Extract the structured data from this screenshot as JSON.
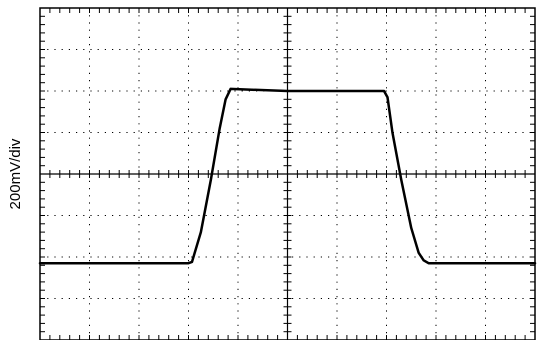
{
  "chart_data": {
    "type": "line",
    "ylabel": "200mV/div",
    "xlabel": "",
    "title": "",
    "grid": true,
    "grid_style": "dotted",
    "x_divisions": 10,
    "y_divisions": 8,
    "minor_ticks_per_division": 5,
    "xlim": [
      0,
      10
    ],
    "ylim": [
      0,
      8
    ],
    "series": [
      {
        "x": [
          0,
          3.0,
          3.07,
          3.25,
          3.45,
          3.63,
          3.75,
          3.85,
          5.0,
          6.0,
          6.95,
          7.02,
          7.12,
          7.3,
          7.5,
          7.65,
          7.75,
          7.85,
          10
        ],
        "y": [
          1.85,
          1.85,
          1.88,
          2.6,
          3.85,
          5.1,
          5.8,
          6.05,
          6.0,
          6.0,
          6.0,
          5.85,
          5.0,
          3.85,
          2.7,
          2.1,
          1.92,
          1.85,
          1.85
        ]
      }
    ],
    "colors": {
      "trace": "#000000",
      "frame": "#000000",
      "grid": "#000000"
    }
  }
}
